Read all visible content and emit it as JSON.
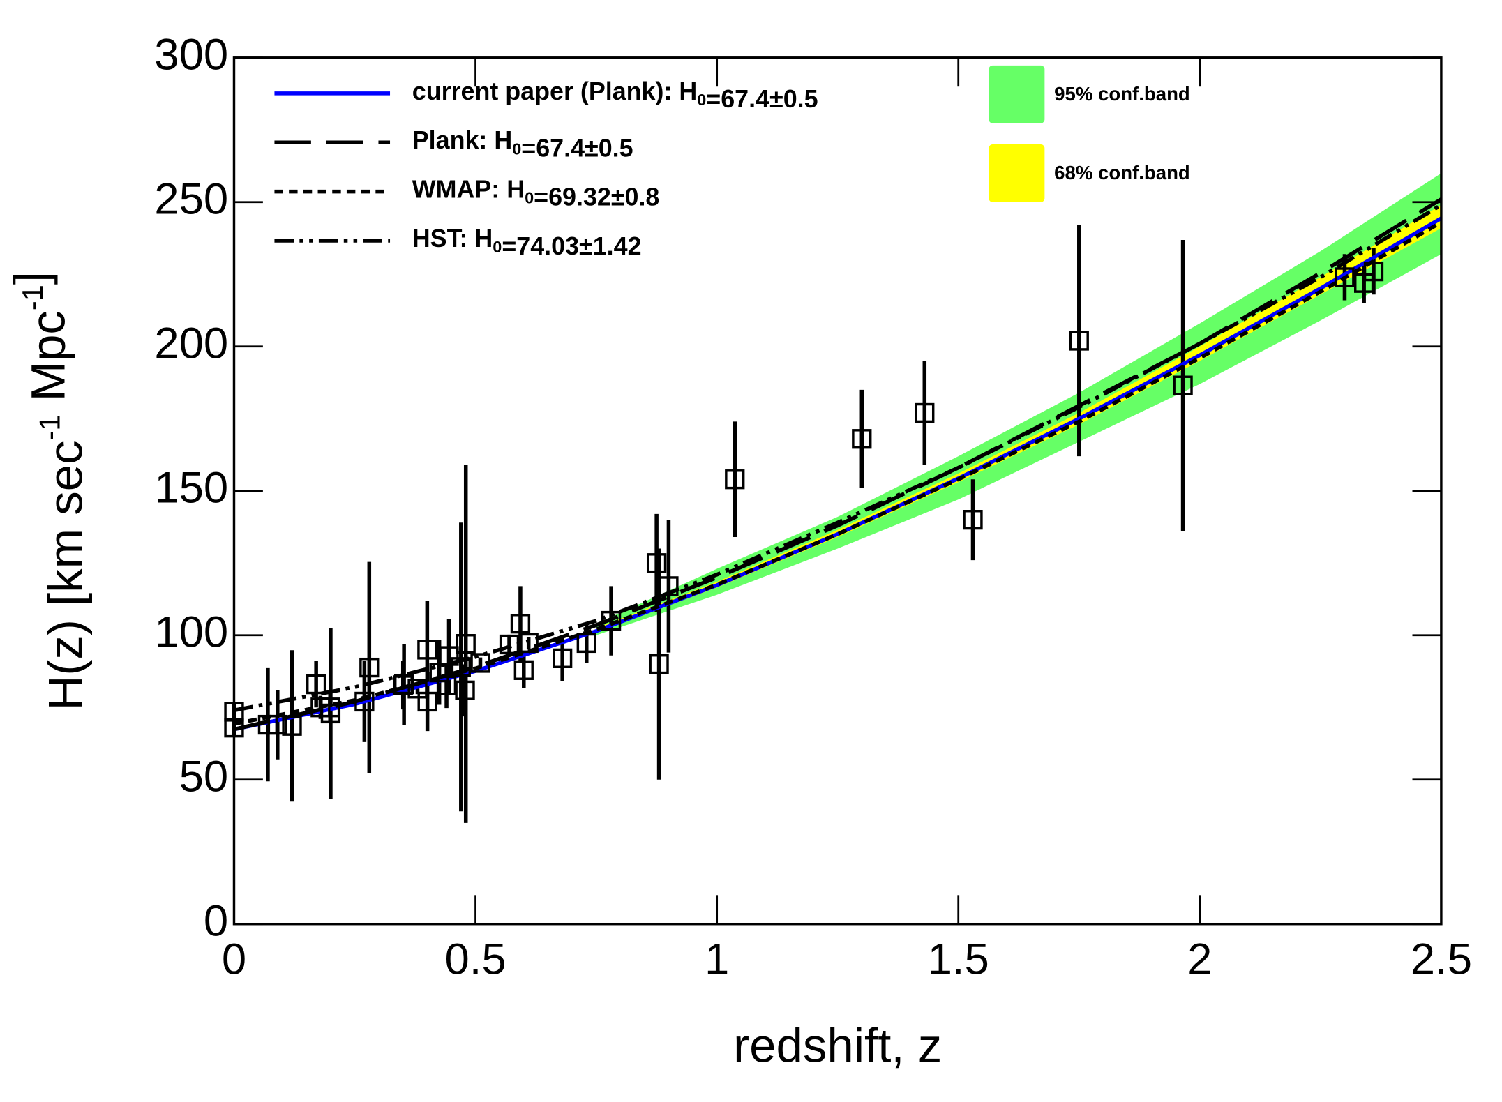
{
  "chart_data": {
    "type": "scatter",
    "xlabel": "redshift, z",
    "ylabel": "H(z) [km sec-1 Mpc-1]",
    "xlim": [
      0,
      2.5
    ],
    "ylim": [
      0,
      300
    ],
    "xticks": [
      0,
      0.5,
      1,
      1.5,
      2,
      2.5
    ],
    "yticks": [
      0,
      50,
      100,
      150,
      200,
      250,
      300
    ],
    "x": [
      0,
      0.25,
      0.5,
      0.75,
      1,
      1.25,
      1.5,
      1.75,
      2,
      2.25,
      2.5
    ],
    "series": [
      {
        "name": "current paper (Plank): H0=67.4±0.5",
        "color": "#0000ff",
        "style": "solid",
        "values": [
          67.4,
          76.15,
          87.59,
          101.42,
          117.32,
          135.02,
          154.31,
          174.99,
          196.96,
          220.12,
          244.4
        ]
      },
      {
        "name": "Plank: H0=67.4±0.5",
        "color": "#000000",
        "style": "dashed",
        "values": [
          67.4,
          77,
          89,
          103.5,
          120,
          138,
          158,
          179.5,
          201,
          225.5,
          251
        ]
      },
      {
        "name": "WMAP: H0=69.32±0.8",
        "color": "#000000",
        "style": "dotted",
        "values": [
          69.3,
          77.5,
          88.5,
          102,
          117.5,
          135,
          154,
          174,
          196,
          219,
          243
        ]
      },
      {
        "name": "HST: H0=74.03±1.42",
        "color": "#000000",
        "style": "dashdot",
        "values": [
          74,
          82,
          92.5,
          105,
          121,
          139,
          158,
          179,
          201,
          224,
          249
        ]
      }
    ],
    "bands": [
      {
        "name": "95% conf.band",
        "color": "#66ff66",
        "x": [
          0.75,
          1,
          1.25,
          1.5,
          1.75,
          2,
          2.25,
          2.5
        ],
        "lower": [
          100,
          114,
          130,
          147,
          167,
          187,
          209,
          232
        ],
        "upper": [
          104,
          123,
          141,
          162,
          184,
          208,
          233,
          260
        ]
      },
      {
        "name": "68% conf.band",
        "color": "#ffff00",
        "x": [
          0.75,
          1,
          1.25,
          1.5,
          1.75,
          2,
          2.25,
          2.5
        ],
        "lower": [
          101,
          116.5,
          134,
          153,
          173,
          195,
          218,
          241
        ],
        "upper": [
          102.5,
          118.5,
          136.5,
          156,
          177,
          200,
          224,
          249
        ]
      }
    ],
    "points": {
      "marker": "square",
      "color": "#000000",
      "x": [
        0,
        0,
        0.07,
        0.09,
        0.12,
        0.17,
        0.179,
        0.199,
        0.2,
        0.27,
        0.28,
        0.35,
        0.352,
        0.38,
        0.4,
        0.4004,
        0.425,
        0.44,
        0.445,
        0.47,
        0.4783,
        0.48,
        0.51,
        0.57,
        0.593,
        0.6,
        0.61,
        0.68,
        0.73,
        0.781,
        0.875,
        0.88,
        0.9,
        1.037,
        1.3,
        1.43,
        1.53,
        1.75,
        1.965,
        2.3,
        2.34,
        2.36
      ],
      "values": [
        68,
        73.5,
        69,
        69,
        68.6,
        83,
        75,
        75,
        72.9,
        77,
        88.8,
        82.7,
        83,
        81.5,
        95,
        77,
        87.1,
        82.6,
        92.8,
        89,
        80.9,
        97,
        90.4,
        96.8,
        104,
        87.9,
        97.3,
        92,
        97.3,
        105,
        125,
        90,
        117,
        154,
        168,
        177,
        140,
        202,
        186.5,
        224,
        222,
        226
      ],
      "errors": [
        3,
        3,
        19.6,
        12,
        26.2,
        8,
        4,
        5,
        29.6,
        14,
        36.6,
        8.4,
        14,
        1.9,
        17,
        10.2,
        11.2,
        7.8,
        12.9,
        50,
        9,
        62,
        1.9,
        3.4,
        13,
        6.1,
        2.1,
        8,
        7,
        12,
        17,
        40,
        23,
        20,
        17,
        18,
        14,
        40,
        50.4,
        8,
        7,
        8
      ]
    },
    "grid": false
  }
}
